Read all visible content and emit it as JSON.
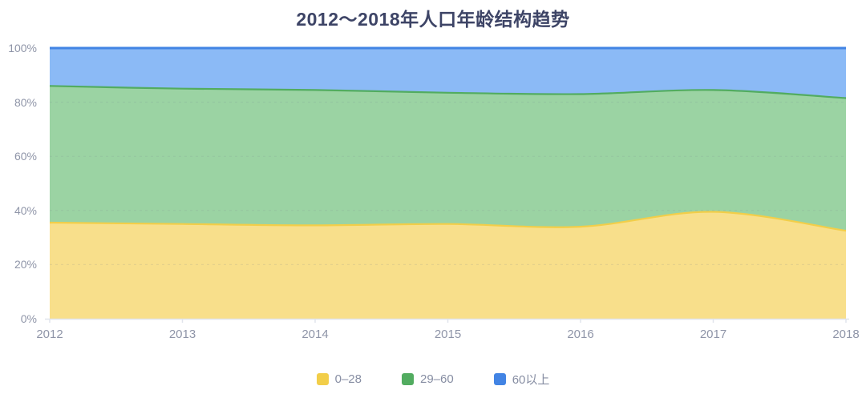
{
  "chart_data": {
    "type": "area",
    "stacked": true,
    "percent": true,
    "title": "2012～2018年人口年龄结构趋势",
    "xlabel": "",
    "ylabel": "",
    "categories": [
      "2012",
      "2013",
      "2014",
      "2015",
      "2016",
      "2017",
      "2018"
    ],
    "series": [
      {
        "name": "0–28",
        "values": [
          35.5,
          35.0,
          34.5,
          35.0,
          34.0,
          39.5,
          32.5
        ],
        "line_color": "#f2ce49",
        "fill_color": "#f8df8b"
      },
      {
        "name": "29–60",
        "values": [
          50.5,
          50.0,
          50.0,
          48.5,
          49.0,
          45.0,
          49.0
        ],
        "line_color": "#52ac60",
        "fill_color": "#9bd3a3"
      },
      {
        "name": "60以上",
        "values": [
          14.0,
          15.0,
          15.5,
          16.5,
          17.0,
          15.5,
          18.5
        ],
        "line_color": "#4284e4",
        "fill_color": "#8bbaf6"
      }
    ],
    "y_ticks": [
      "0%",
      "20%",
      "40%",
      "60%",
      "80%",
      "100%"
    ],
    "ylim": [
      0,
      100
    ],
    "grid": "dashed-horizontal",
    "legend_position": "bottom",
    "colors": {
      "title_text": "#3d4466",
      "axis_text": "#8f95a8",
      "legend_text": "#878ea3",
      "axis_line": "#e0e4ec",
      "gridline": "rgba(110,120,140,0.16)"
    }
  }
}
